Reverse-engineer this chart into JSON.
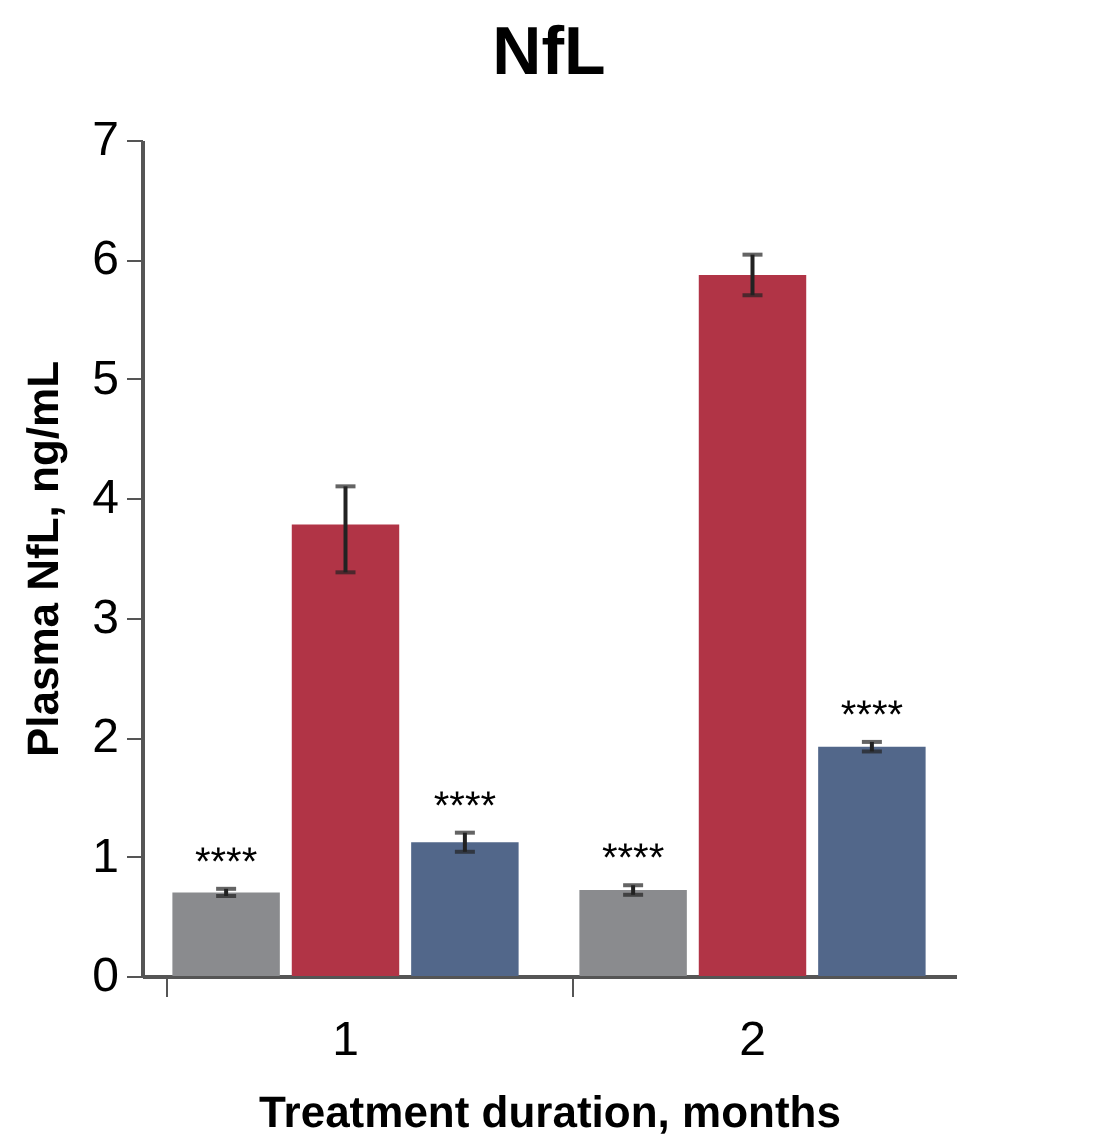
{
  "chart_data": {
    "type": "bar",
    "title": "NfL",
    "xlabel": "Treatment duration, months",
    "ylabel": "Plasma NfL, ng/mL",
    "categories": [
      "1",
      "2"
    ],
    "series": [
      {
        "color": "#8a8b8e",
        "values": [
          0.7,
          0.72
        ],
        "errors": [
          0.03,
          0.04
        ],
        "value_labels": [
          "****",
          "****"
        ]
      },
      {
        "color": "#b13446",
        "values": [
          3.78,
          5.87
        ],
        "errors": [
          [
            3.38,
            4.1
          ],
          0.17
        ]
      },
      {
        "color": "#52678a",
        "values": [
          1.12,
          1.92
        ],
        "errors": [
          0.08,
          0.04
        ],
        "value_labels": [
          "****",
          "****"
        ]
      }
    ],
    "ylim": [
      0,
      7
    ],
    "yticks": [
      0,
      1,
      2,
      3,
      4,
      5,
      6,
      7
    ],
    "grid": false,
    "legend": false
  }
}
